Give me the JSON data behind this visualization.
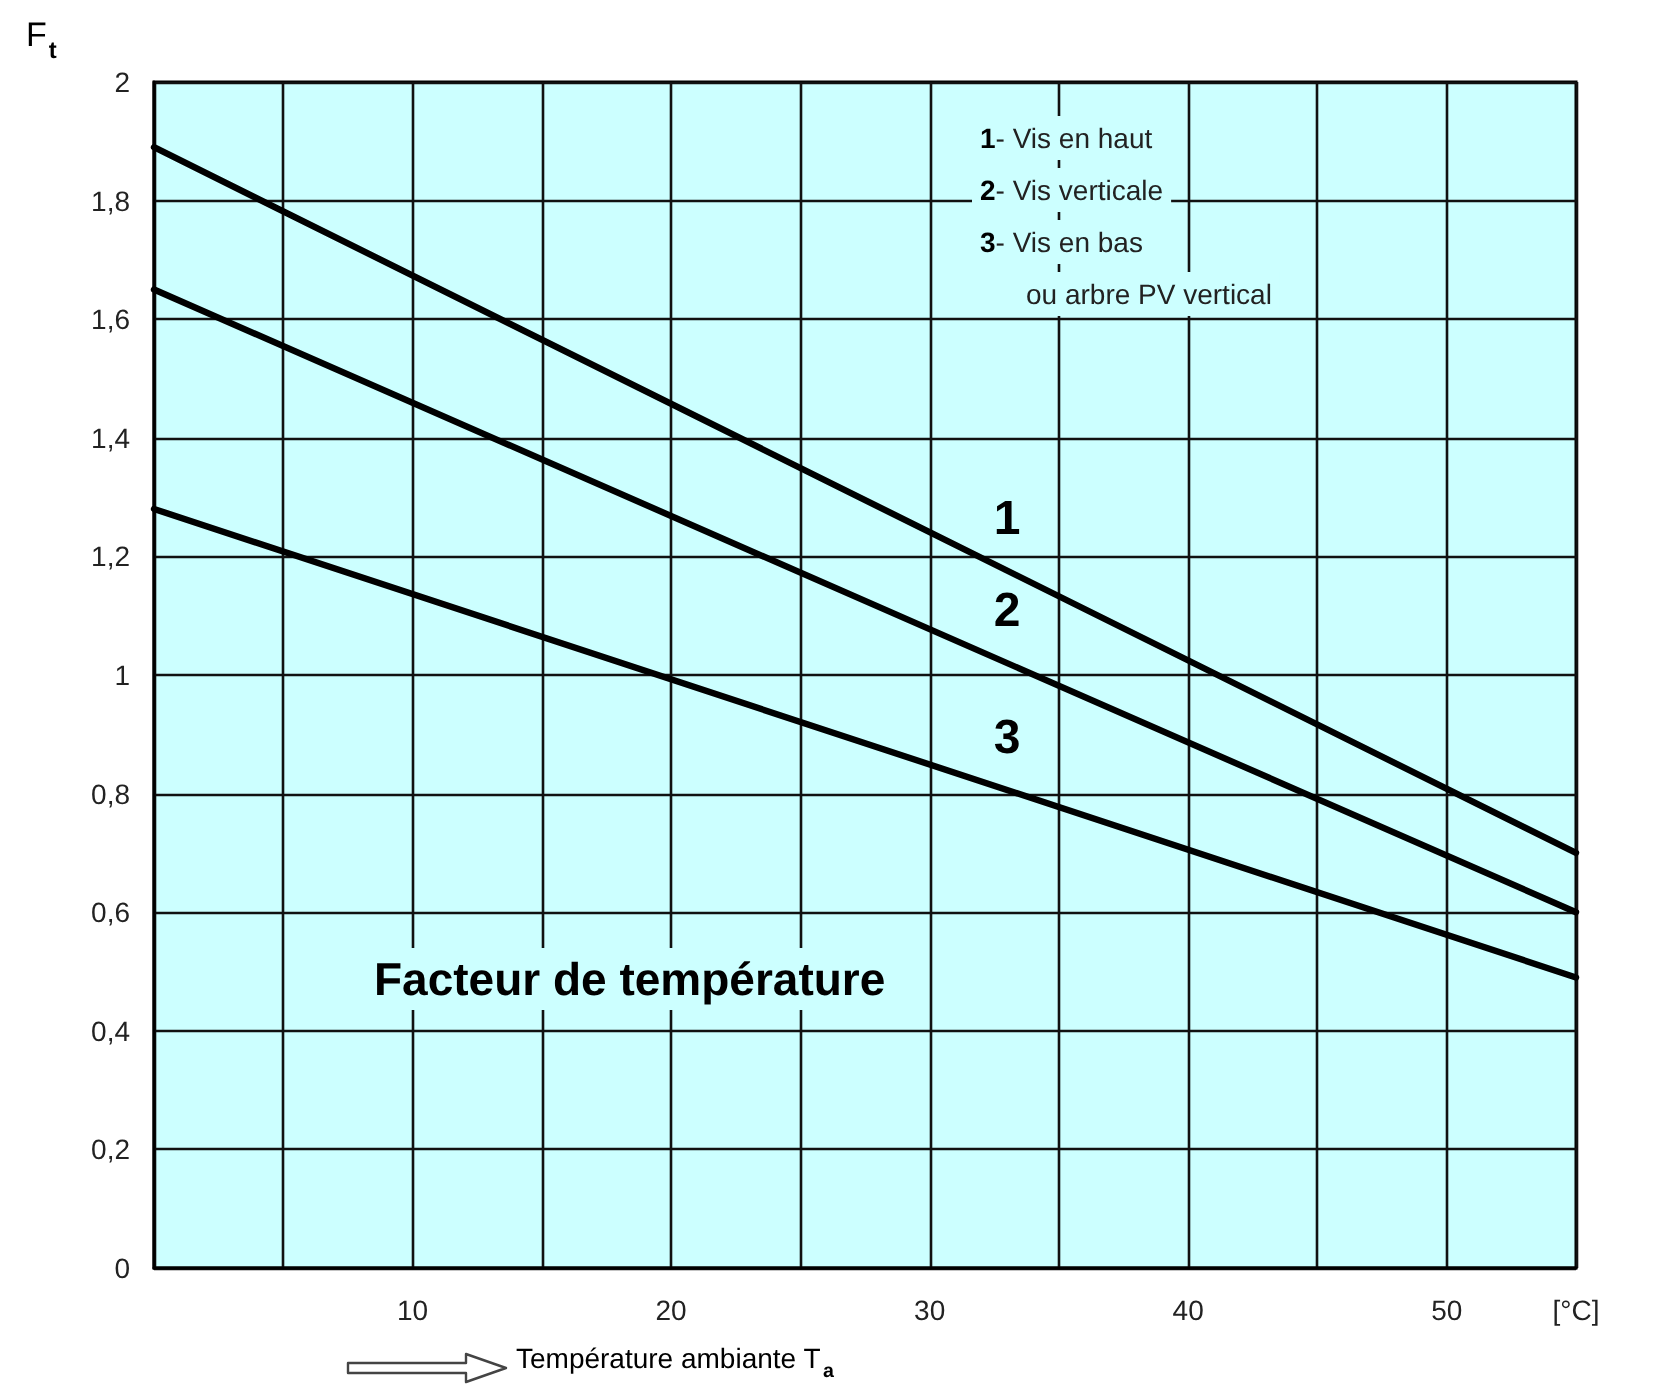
{
  "chart_data": {
    "type": "line",
    "title": "Facteur de température",
    "xlabel": "Température ambiante T$_{a}$",
    "ylabel": "F$_{t}$",
    "x": [
      0,
      55
    ],
    "series": [
      {
        "name": "1",
        "color": "#000000",
        "values": [
          1.89,
          0.7
        ]
      },
      {
        "name": "2",
        "color": "#000000",
        "values": [
          1.65,
          0.6
        ]
      },
      {
        "name": "3",
        "color": "#000000",
        "values": [
          1.28,
          0.49
        ]
      }
    ],
    "xlim": [
      0,
      55
    ],
    "xticks": [
      {
        "value": 0,
        "label": null
      },
      {
        "value": 5,
        "label": null
      },
      10,
      {
        "value": 15,
        "label": null
      },
      20,
      {
        "value": 25,
        "label": null
      },
      30,
      {
        "value": 35,
        "label": null
      },
      40,
      {
        "value": 45,
        "label": null
      },
      50,
      {
        "value": 55,
        "label": "[°C]"
      }
    ],
    "ylim": [
      0,
      2
    ],
    "yticks": [
      0,
      {
        "value": 0.2,
        "label": "0,2"
      },
      {
        "value": 0.4,
        "label": "0,4"
      },
      {
        "value": 0.6,
        "label": "0,6"
      },
      {
        "value": 0.8,
        "label": "0,8"
      },
      1,
      {
        "value": 1.2,
        "label": "1,2"
      },
      {
        "value": 1.4,
        "label": "1,4"
      },
      {
        "value": 1.6,
        "label": "1,6"
      },
      {
        "value": 1.8,
        "label": "1,8"
      },
      2
    ],
    "grid": true,
    "line_style": "solid",
    "annotations": [
      "1- Vis en haut",
      "2- Vis verticale",
      "3- Vis en bas",
      "ou arbre PV vertical"
    ]
  }
}
